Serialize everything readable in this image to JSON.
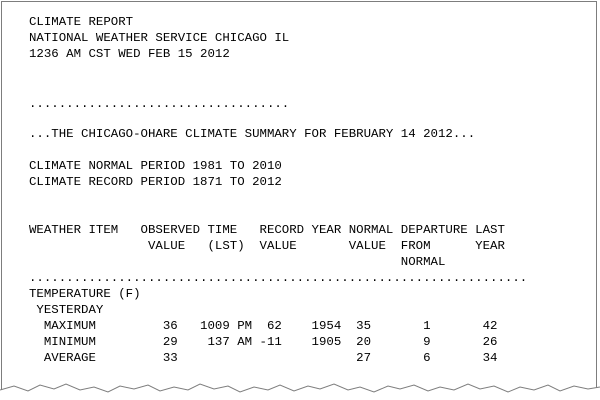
{
  "report": {
    "lines": [
      {
        "name": "report-title",
        "text": "CLIMATE REPORT"
      },
      {
        "name": "issuing-office",
        "text": "NATIONAL WEATHER SERVICE CHICAGO IL"
      },
      {
        "name": "issue-time",
        "text": "1236 AM CST WED FEB 15 2012"
      },
      {
        "name": "dotted-separator",
        "text": "..................................."
      },
      {
        "name": "summary-heading",
        "text": "...THE CHICAGO-OHARE CLIMATE SUMMARY FOR FEBRUARY 14 2012..."
      },
      {
        "name": "normal-period",
        "text": "CLIMATE NORMAL PERIOD 1981 TO 2010"
      },
      {
        "name": "record-period",
        "text": "CLIMATE RECORD PERIOD 1871 TO 2012"
      },
      {
        "name": "table-header-line-1",
        "text": "WEATHER ITEM   OBSERVED TIME   RECORD YEAR NORMAL DEPARTURE LAST"
      },
      {
        "name": "table-header-line-2",
        "text": "                VALUE   (LST)  VALUE       VALUE  FROM      YEAR"
      },
      {
        "name": "table-header-line-3",
        "text": "                                                  NORMAL"
      },
      {
        "name": "table-separator",
        "text": "..................................................................."
      },
      {
        "name": "section-temperature",
        "text": "TEMPERATURE (F)"
      },
      {
        "name": "subsection-yesterday",
        "text": " YESTERDAY"
      },
      {
        "name": "row-maximum",
        "text": "  MAXIMUM         36   1009 PM  62    1954  35       1       42"
      },
      {
        "name": "row-minimum",
        "text": "  MINIMUM         29    137 AM -11    1905  20       9       26"
      },
      {
        "name": "row-average",
        "text": "  AVERAGE         33                        27       6       34"
      }
    ]
  }
}
